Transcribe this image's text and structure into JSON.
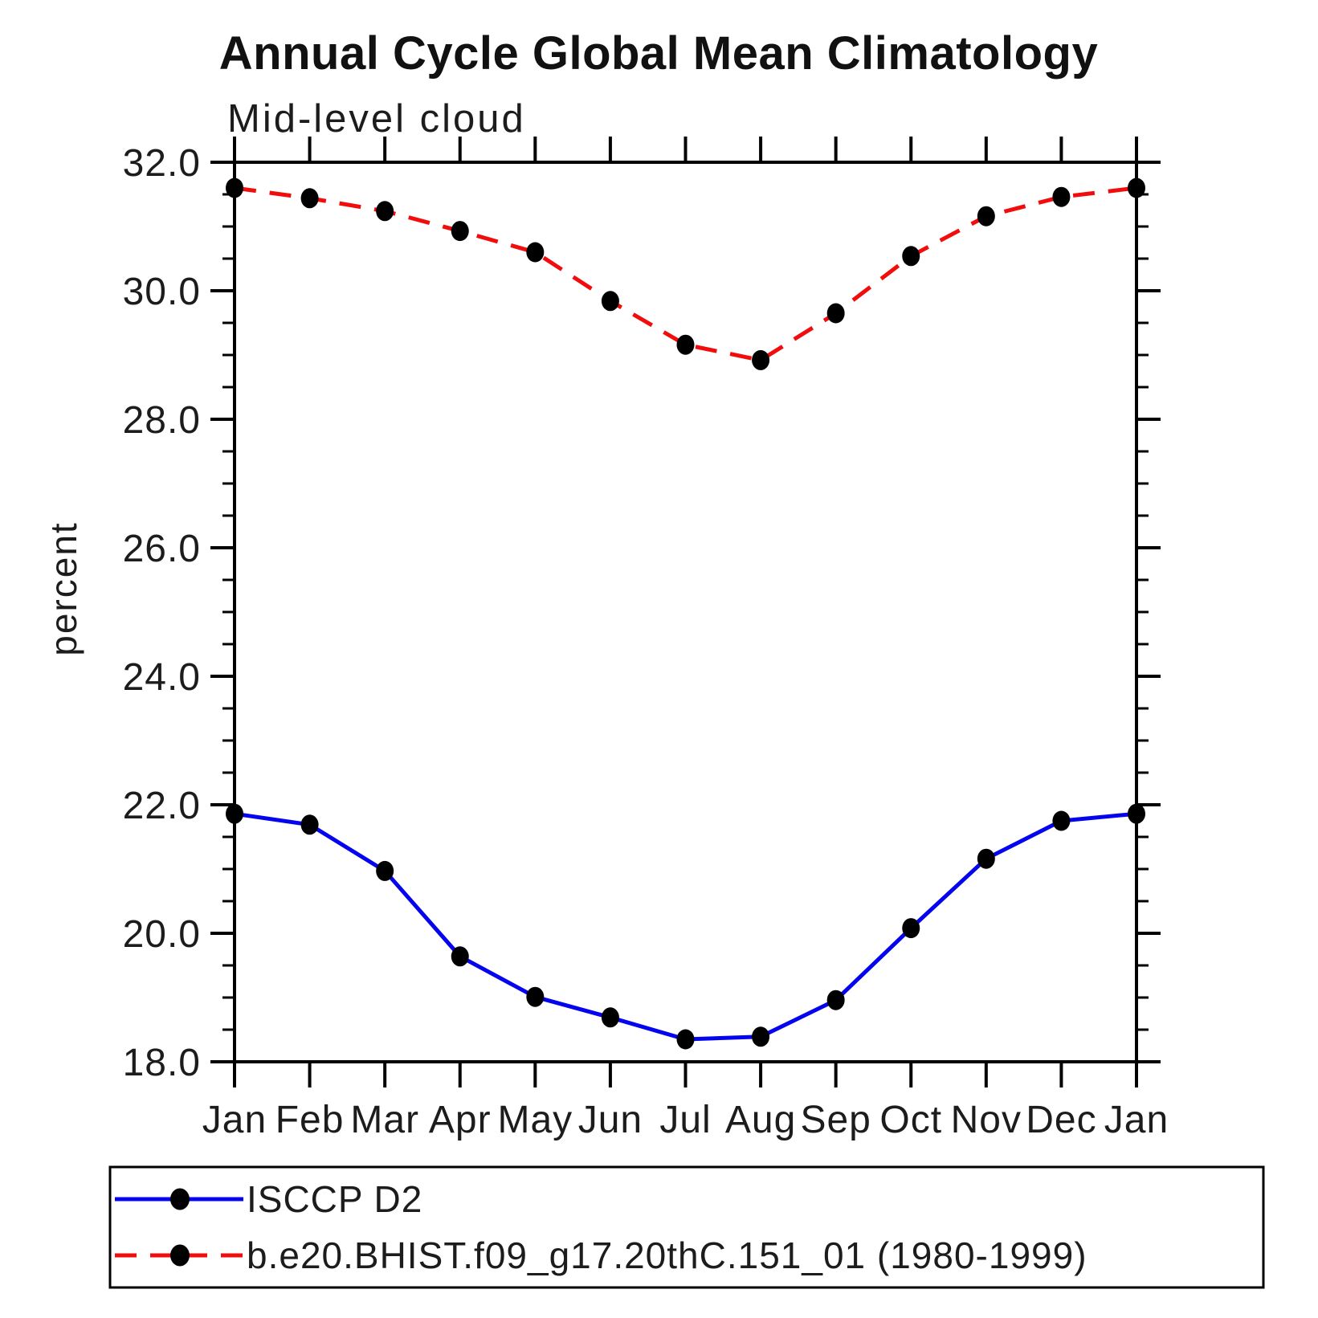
{
  "title": "Annual Cycle Global Mean Climatology",
  "subtitle": "Mid-level cloud",
  "ylabel": "percent",
  "legend": {
    "position": "bottom",
    "entries": [
      {
        "label": "ISCCP D2",
        "color": "#0404ee",
        "line_style": "solid",
        "marker": "filled-circle",
        "marker_color": "#000000"
      },
      {
        "label": "b.e20.BHIST.f09_g17.20thC.151_01 (1980-1999)",
        "color": "#f20d0d",
        "line_style": "dashed",
        "marker": "filled-circle",
        "marker_color": "#000000"
      }
    ]
  },
  "chart_data": {
    "type": "line",
    "title": "Annual Cycle Global Mean Climatology",
    "subtitle": "Mid-level cloud",
    "xlabel": "",
    "ylabel": "percent",
    "categories": [
      "Jan",
      "Feb",
      "Mar",
      "Apr",
      "May",
      "Jun",
      "Jul",
      "Aug",
      "Sep",
      "Oct",
      "Nov",
      "Dec",
      "Jan"
    ],
    "series": [
      {
        "name": "ISCCP D2",
        "color": "#0404ee",
        "line_style": "solid",
        "marker": "filled-circle",
        "marker_color": "#000000",
        "values": [
          21.86,
          21.69,
          20.97,
          19.64,
          19.01,
          18.69,
          18.35,
          18.39,
          18.96,
          20.08,
          21.16,
          21.75,
          21.86
        ]
      },
      {
        "name": "b.e20.BHIST.f09_g17.20thC.151_01 (1980-1999)",
        "color": "#f20d0d",
        "line_style": "dashed",
        "marker": "filled-circle",
        "marker_color": "#000000",
        "values": [
          31.6,
          31.44,
          31.24,
          30.93,
          30.6,
          29.84,
          29.16,
          28.92,
          29.65,
          30.54,
          31.16,
          31.46,
          31.6
        ]
      }
    ],
    "ylim": [
      18.0,
      32.0
    ],
    "y_tick_labels": [
      "18.0",
      "20.0",
      "22.0",
      "24.0",
      "26.0",
      "28.0",
      "30.0",
      "32.0"
    ],
    "y_major_step": 2.0,
    "y_minor_step": 0.5,
    "grid": false,
    "legend_position": "bottom"
  },
  "colors": {
    "axis": "#000000",
    "marker": "#000000",
    "background": "#ffffff"
  }
}
